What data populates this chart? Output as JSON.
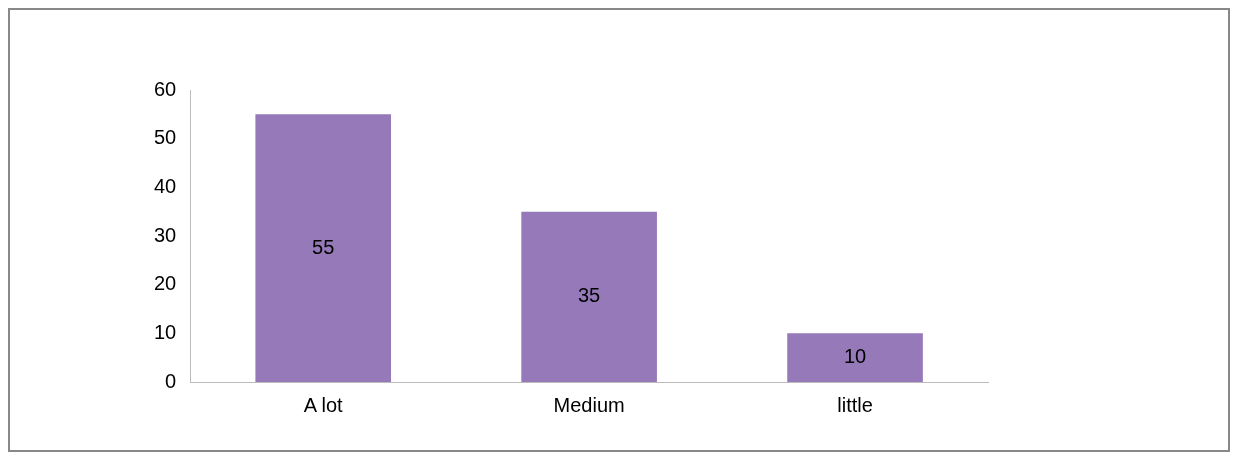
{
  "chart_data": {
    "type": "bar",
    "categories": [
      "A lot",
      "Medium",
      "little"
    ],
    "values": [
      55,
      35,
      10
    ],
    "color": "#9579b9",
    "ylim": [
      0,
      60
    ],
    "yticks": [
      0,
      10,
      20,
      30,
      40,
      50,
      60
    ],
    "grid": false,
    "data_labels": true,
    "legend": false
  }
}
